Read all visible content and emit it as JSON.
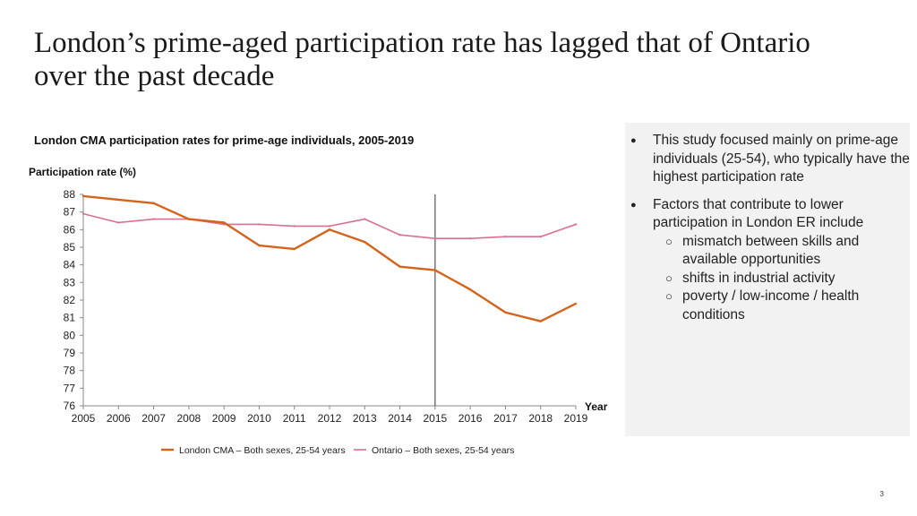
{
  "slide": {
    "title": "London’s prime-aged participation rate has lagged that of Ontario over the past decade",
    "page_number": "3"
  },
  "sidebar": {
    "background": "#f2f2f2",
    "bullets": [
      {
        "text": "This study focused mainly on prime-age individuals (25-54), who typically have the highest participation rate",
        "subitems": []
      },
      {
        "text": "Factors that contribute to lower participation in London ER include",
        "subitems": [
          "mismatch between skills and available opportunities",
          "shifts in industrial activity",
          "poverty / low-income / health conditions"
        ]
      }
    ]
  },
  "chart_data": {
    "type": "line",
    "title": "London CMA participation rates for prime-age individuals, 2005-2019",
    "ylabel": "Participation rate (%)",
    "xlabel": "Year",
    "x": [
      2005,
      2006,
      2007,
      2008,
      2009,
      2010,
      2011,
      2012,
      2013,
      2014,
      2015,
      2016,
      2017,
      2018,
      2019
    ],
    "ylim": [
      76,
      88
    ],
    "yticks": [
      76,
      77,
      78,
      79,
      80,
      81,
      82,
      83,
      84,
      85,
      86,
      87,
      88
    ],
    "reference_line_x": 2015,
    "grid": false,
    "legend_position": "bottom",
    "series": [
      {
        "name": "London CMA – Both sexes, 25-54 years",
        "color": "#d4631c",
        "values": [
          87.9,
          87.7,
          87.5,
          86.6,
          86.4,
          85.1,
          84.9,
          86.0,
          85.3,
          83.9,
          83.7,
          82.6,
          81.3,
          80.8,
          81.8
        ]
      },
      {
        "name": "Ontario – Both sexes, 25-54 years",
        "color": "#d9708f",
        "values": [
          86.9,
          86.4,
          86.6,
          86.6,
          86.3,
          86.3,
          86.2,
          86.2,
          86.6,
          85.7,
          85.5,
          85.5,
          85.6,
          85.6,
          86.3
        ]
      }
    ]
  }
}
